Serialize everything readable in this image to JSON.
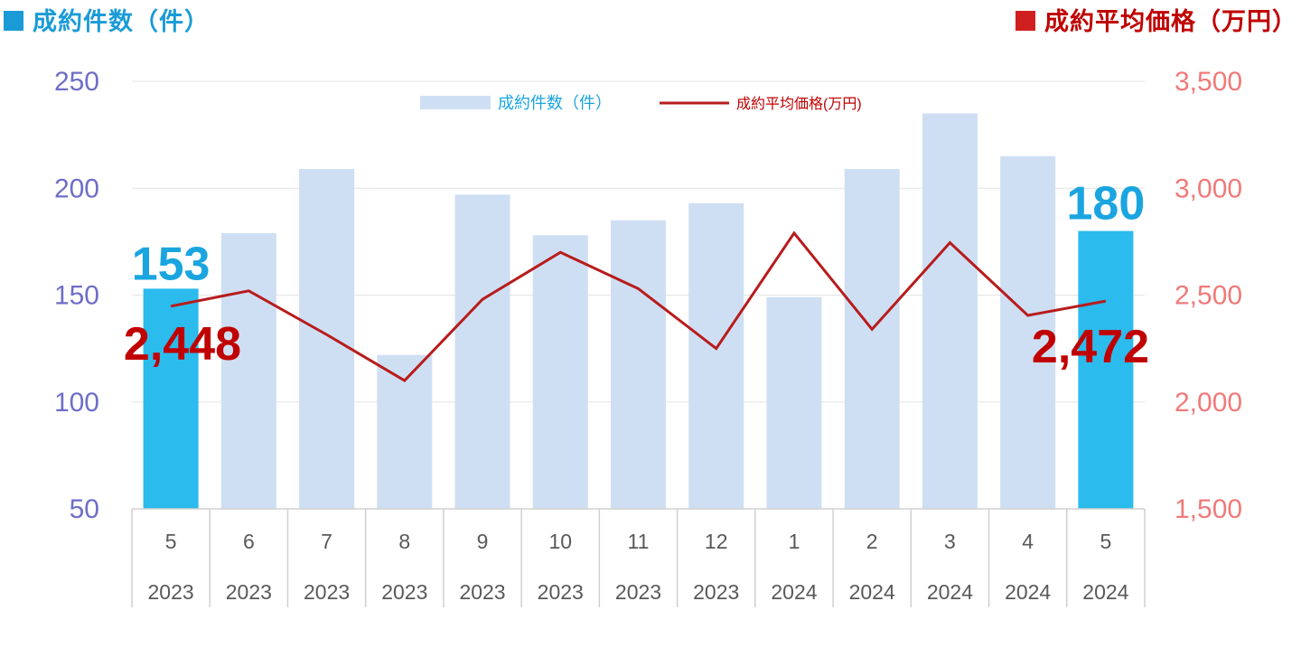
{
  "header": {
    "left_title": "成約件数（件）",
    "right_title": "成約平均価格（万円）"
  },
  "colors": {
    "bar_normal": "#cfdff3",
    "bar_highlight": "#2bbbed",
    "line": "#b71c1c",
    "left_axis": "#6e6ec8",
    "right_axis": "#f07a7a",
    "count_label": "#1aa5e0",
    "price_label": "#c00000"
  },
  "chart_data": {
    "type": "bar",
    "title": "",
    "categories": [
      "5",
      "6",
      "7",
      "8",
      "9",
      "10",
      "11",
      "12",
      "1",
      "2",
      "3",
      "4",
      "5"
    ],
    "category_years": [
      "2023",
      "2023",
      "2023",
      "2023",
      "2023",
      "2023",
      "2023",
      "2023",
      "2024",
      "2024",
      "2024",
      "2024",
      "2024"
    ],
    "series": [
      {
        "name": "成約件数（件）",
        "type": "bar",
        "axis": "left",
        "values": [
          153,
          179,
          209,
          122,
          197,
          178,
          185,
          193,
          149,
          209,
          235,
          215,
          180
        ]
      },
      {
        "name": "成約平均価格(万円)",
        "type": "line",
        "axis": "right",
        "values": [
          2448,
          2520,
          2315,
          2100,
          2480,
          2700,
          2530,
          2250,
          2790,
          2340,
          2745,
          2405,
          2472
        ]
      }
    ],
    "highlight_indices": [
      0,
      12
    ],
    "y_left": {
      "min": 50,
      "max": 250,
      "ticks": [
        "50",
        "100",
        "150",
        "200",
        "250"
      ]
    },
    "y_right": {
      "min": 1500,
      "max": 3500,
      "ticks": [
        "1,500",
        "2,000",
        "2,500",
        "3,000",
        "3,500"
      ]
    },
    "data_labels": {
      "first_count": "153",
      "last_count": "180",
      "first_price": "2,448",
      "last_price": "2,472"
    },
    "legend": {
      "placement": "top-center"
    },
    "grid": true
  }
}
